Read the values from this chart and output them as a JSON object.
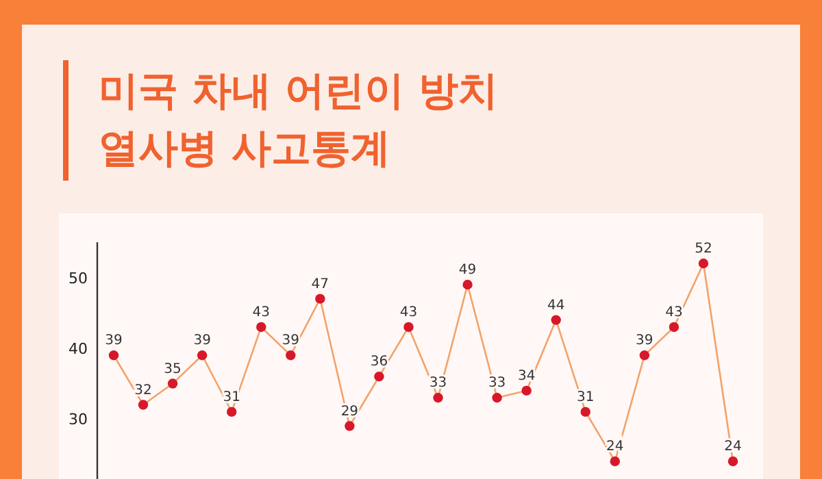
{
  "chart_data": {
    "type": "line",
    "title": "미국 차내 어린이 방치\n열사병 사고통계",
    "categories": [
      null,
      null,
      null,
      null,
      null,
      null,
      null,
      null,
      null,
      null,
      null,
      null,
      null,
      null,
      null,
      null,
      null,
      null,
      null,
      null,
      null,
      null
    ],
    "series": [
      {
        "color": "#f2a26a",
        "colors": [
          "#d7182a",
          "#d7182a",
          "#d7182a",
          "#d7182a",
          "#d7182a",
          "#d7182a",
          "#d7182a",
          "#d7182a",
          "#d7182a",
          "#d7182a",
          "#d7182a",
          "#d7182a",
          "#d7182a",
          "#d7182a",
          "#d7182a",
          "#d7182a",
          "#d7182a",
          "#d7182a",
          "#d7182a",
          "#d7182a",
          "#d7182a",
          "#d7182a"
        ],
        "values": [
          39,
          32,
          35,
          39,
          31,
          43,
          39,
          47,
          29,
          36,
          43,
          33,
          49,
          33,
          34,
          44,
          31,
          24,
          39,
          43,
          52,
          24
        ]
      }
    ],
    "ylim": [
      21.5,
      55
    ],
    "yticks": [
      30,
      40,
      50
    ],
    "data_labels": true,
    "marker": "circle",
    "grid": false,
    "tick_labels": "y"
  }
}
